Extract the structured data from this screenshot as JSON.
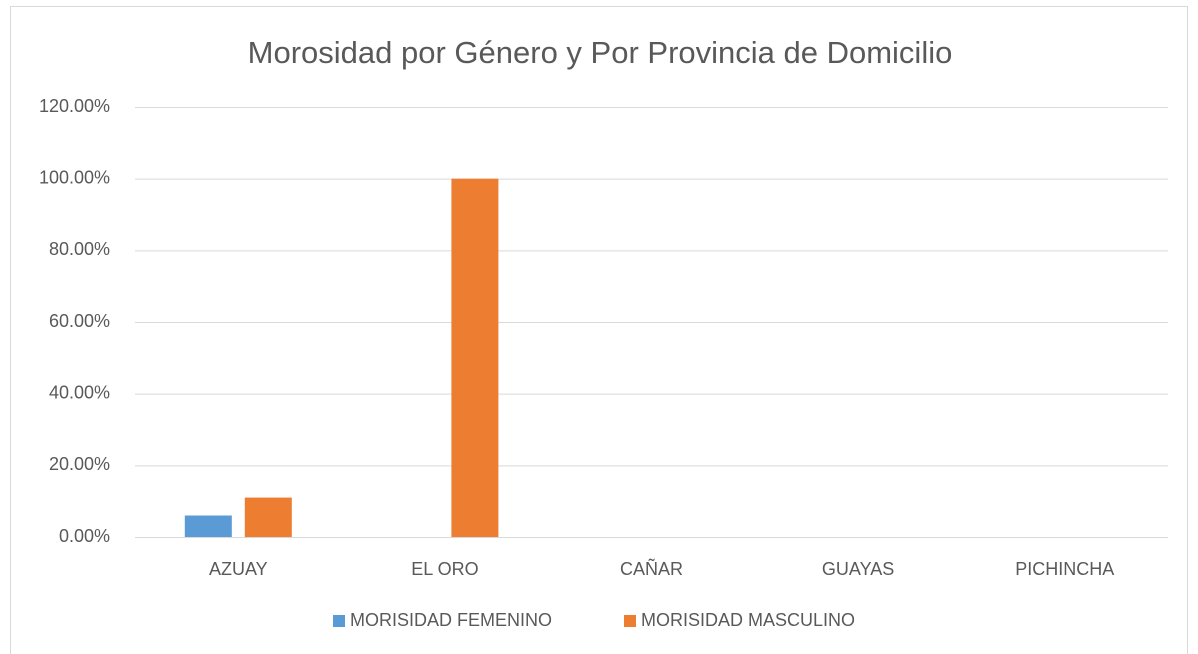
{
  "chart_data": {
    "type": "bar",
    "title": "Morosidad por Género y Por Provincia de Domicilio",
    "categories": [
      "AZUAY",
      "EL ORO",
      "CAÑAR",
      "GUAYAS",
      "PICHINCHA"
    ],
    "series": [
      {
        "name": "MORISIDAD FEMENINO",
        "color": "#5b9bd5",
        "values": [
          6,
          0,
          0,
          0,
          0
        ]
      },
      {
        "name": "MORISIDAD MASCULINO",
        "color": "#ed7d31",
        "values": [
          11,
          100,
          0,
          0,
          0
        ]
      }
    ],
    "ylim": [
      0,
      120
    ],
    "yticks": [
      {
        "value": 0,
        "label": "0.00%"
      },
      {
        "value": 20,
        "label": "20.00%"
      },
      {
        "value": 40,
        "label": "40.00%"
      },
      {
        "value": 60,
        "label": "60.00%"
      },
      {
        "value": 80,
        "label": "80.00%"
      },
      {
        "value": 100,
        "label": "100.00%"
      },
      {
        "value": 120,
        "label": "120.00%"
      }
    ],
    "grid": true,
    "legend": "bottom"
  }
}
